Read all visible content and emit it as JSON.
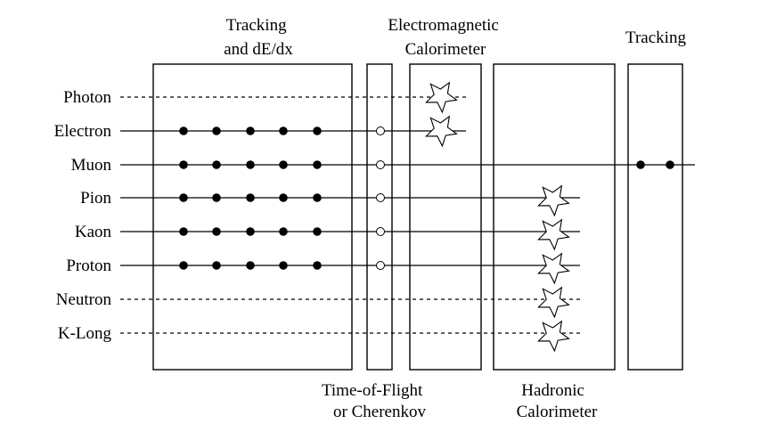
{
  "detectors": {
    "tracking_dedx": [
      "Tracking",
      "and dE/dx"
    ],
    "tof": [
      "Time-of-Flight",
      "or Cherenkov"
    ],
    "em_cal": [
      "Electromagnetic",
      "Calorimeter"
    ],
    "had_cal": [
      "Hadronic",
      "Calorimeter"
    ],
    "muon_tracking": [
      "Tracking"
    ]
  },
  "particles": [
    {
      "name": "Photon",
      "dashed": true,
      "tracker_hits": false,
      "tof": false,
      "em_shower": true,
      "had_shower": false,
      "muon_hits": false
    },
    {
      "name": "Electron",
      "dashed": false,
      "tracker_hits": true,
      "tof": true,
      "em_shower": true,
      "had_shower": false,
      "muon_hits": false
    },
    {
      "name": "Muon",
      "dashed": false,
      "tracker_hits": true,
      "tof": true,
      "em_shower": false,
      "had_shower": false,
      "muon_hits": true
    },
    {
      "name": "Pion",
      "dashed": false,
      "tracker_hits": true,
      "tof": true,
      "em_shower": false,
      "had_shower": true,
      "muon_hits": false
    },
    {
      "name": "Kaon",
      "dashed": false,
      "tracker_hits": true,
      "tof": true,
      "em_shower": false,
      "had_shower": true,
      "muon_hits": false
    },
    {
      "name": "Proton",
      "dashed": false,
      "tracker_hits": true,
      "tof": true,
      "em_shower": false,
      "had_shower": true,
      "muon_hits": false
    },
    {
      "name": "Neutron",
      "dashed": true,
      "tracker_hits": false,
      "tof": false,
      "em_shower": false,
      "had_shower": true,
      "muon_hits": false
    },
    {
      "name": "K-Long",
      "dashed": true,
      "tracker_hits": false,
      "tof": false,
      "em_shower": false,
      "had_shower": true,
      "muon_hits": false
    }
  ]
}
